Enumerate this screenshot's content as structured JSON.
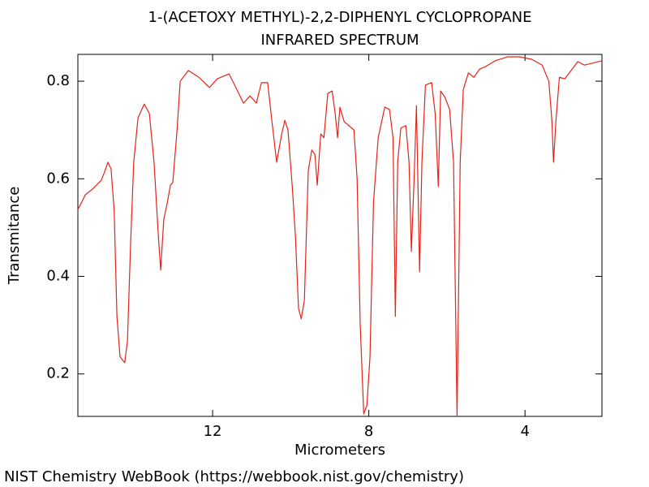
{
  "chart_data": {
    "type": "line",
    "title": "1-(ACETOXY METHYL)-2,2-DIPHENYL CYCLOPROPANE",
    "subtitle": "INFRARED SPECTRUM",
    "x_label": "Micrometers",
    "y_label": "Transmitance",
    "source": "NIST Chemistry WebBook (https://webbook.nist.gov/chemistry)",
    "color": "#e3241b",
    "xlim": [
      15.45,
      2.03
    ],
    "ylim": [
      0.113,
      0.855
    ],
    "xticks": [
      12,
      8,
      4
    ],
    "yticks": [
      0.2,
      0.4,
      0.6,
      0.8
    ],
    "x": [
      15.45,
      15.26,
      15.06,
      14.85,
      14.74,
      14.68,
      14.6,
      14.52,
      14.45,
      14.37,
      14.25,
      14.18,
      14.1,
      14.02,
      13.91,
      13.75,
      13.62,
      13.5,
      13.39,
      13.33,
      13.25,
      13.16,
      13.08,
      13.02,
      12.91,
      12.83,
      12.62,
      12.35,
      12.08,
      11.88,
      11.58,
      11.38,
      11.21,
      11.04,
      10.88,
      10.75,
      10.59,
      10.48,
      10.36,
      10.23,
      10.15,
      10.07,
      9.96,
      9.88,
      9.8,
      9.73,
      9.65,
      9.55,
      9.46,
      9.38,
      9.32,
      9.23,
      9.15,
      9.05,
      8.94,
      8.86,
      8.8,
      8.74,
      8.63,
      8.51,
      8.38,
      8.3,
      8.22,
      8.13,
      8.05,
      7.97,
      7.88,
      7.76,
      7.59,
      7.47,
      7.38,
      7.32,
      7.26,
      7.18,
      7.05,
      6.97,
      6.91,
      6.84,
      6.78,
      6.7,
      6.64,
      6.55,
      6.39,
      6.3,
      6.22,
      6.16,
      6.05,
      5.93,
      5.83,
      5.74,
      5.66,
      5.58,
      5.45,
      5.31,
      5.16,
      5.01,
      4.76,
      4.45,
      4.14,
      3.83,
      3.56,
      3.39,
      3.31,
      3.27,
      3.21,
      3.12,
      2.98,
      2.79,
      2.65,
      2.48,
      2.27,
      2.03
    ],
    "values": [
      0.537,
      0.567,
      0.58,
      0.597,
      0.62,
      0.634,
      0.62,
      0.534,
      0.318,
      0.235,
      0.223,
      0.268,
      0.467,
      0.634,
      0.725,
      0.753,
      0.734,
      0.634,
      0.484,
      0.413,
      0.517,
      0.551,
      0.587,
      0.592,
      0.7,
      0.8,
      0.822,
      0.808,
      0.787,
      0.805,
      0.815,
      0.783,
      0.755,
      0.77,
      0.755,
      0.797,
      0.797,
      0.717,
      0.634,
      0.692,
      0.72,
      0.7,
      0.584,
      0.484,
      0.334,
      0.313,
      0.351,
      0.617,
      0.659,
      0.65,
      0.587,
      0.692,
      0.684,
      0.775,
      0.78,
      0.733,
      0.684,
      0.747,
      0.717,
      0.709,
      0.7,
      0.6,
      0.301,
      0.118,
      0.135,
      0.235,
      0.551,
      0.684,
      0.747,
      0.742,
      0.684,
      0.318,
      0.634,
      0.704,
      0.709,
      0.634,
      0.451,
      0.6,
      0.75,
      0.409,
      0.634,
      0.792,
      0.797,
      0.733,
      0.584,
      0.78,
      0.767,
      0.742,
      0.634,
      0.113,
      0.634,
      0.783,
      0.817,
      0.808,
      0.825,
      0.83,
      0.842,
      0.85,
      0.85,
      0.845,
      0.833,
      0.8,
      0.717,
      0.634,
      0.717,
      0.808,
      0.805,
      0.825,
      0.84,
      0.833,
      0.837,
      0.842
    ]
  }
}
